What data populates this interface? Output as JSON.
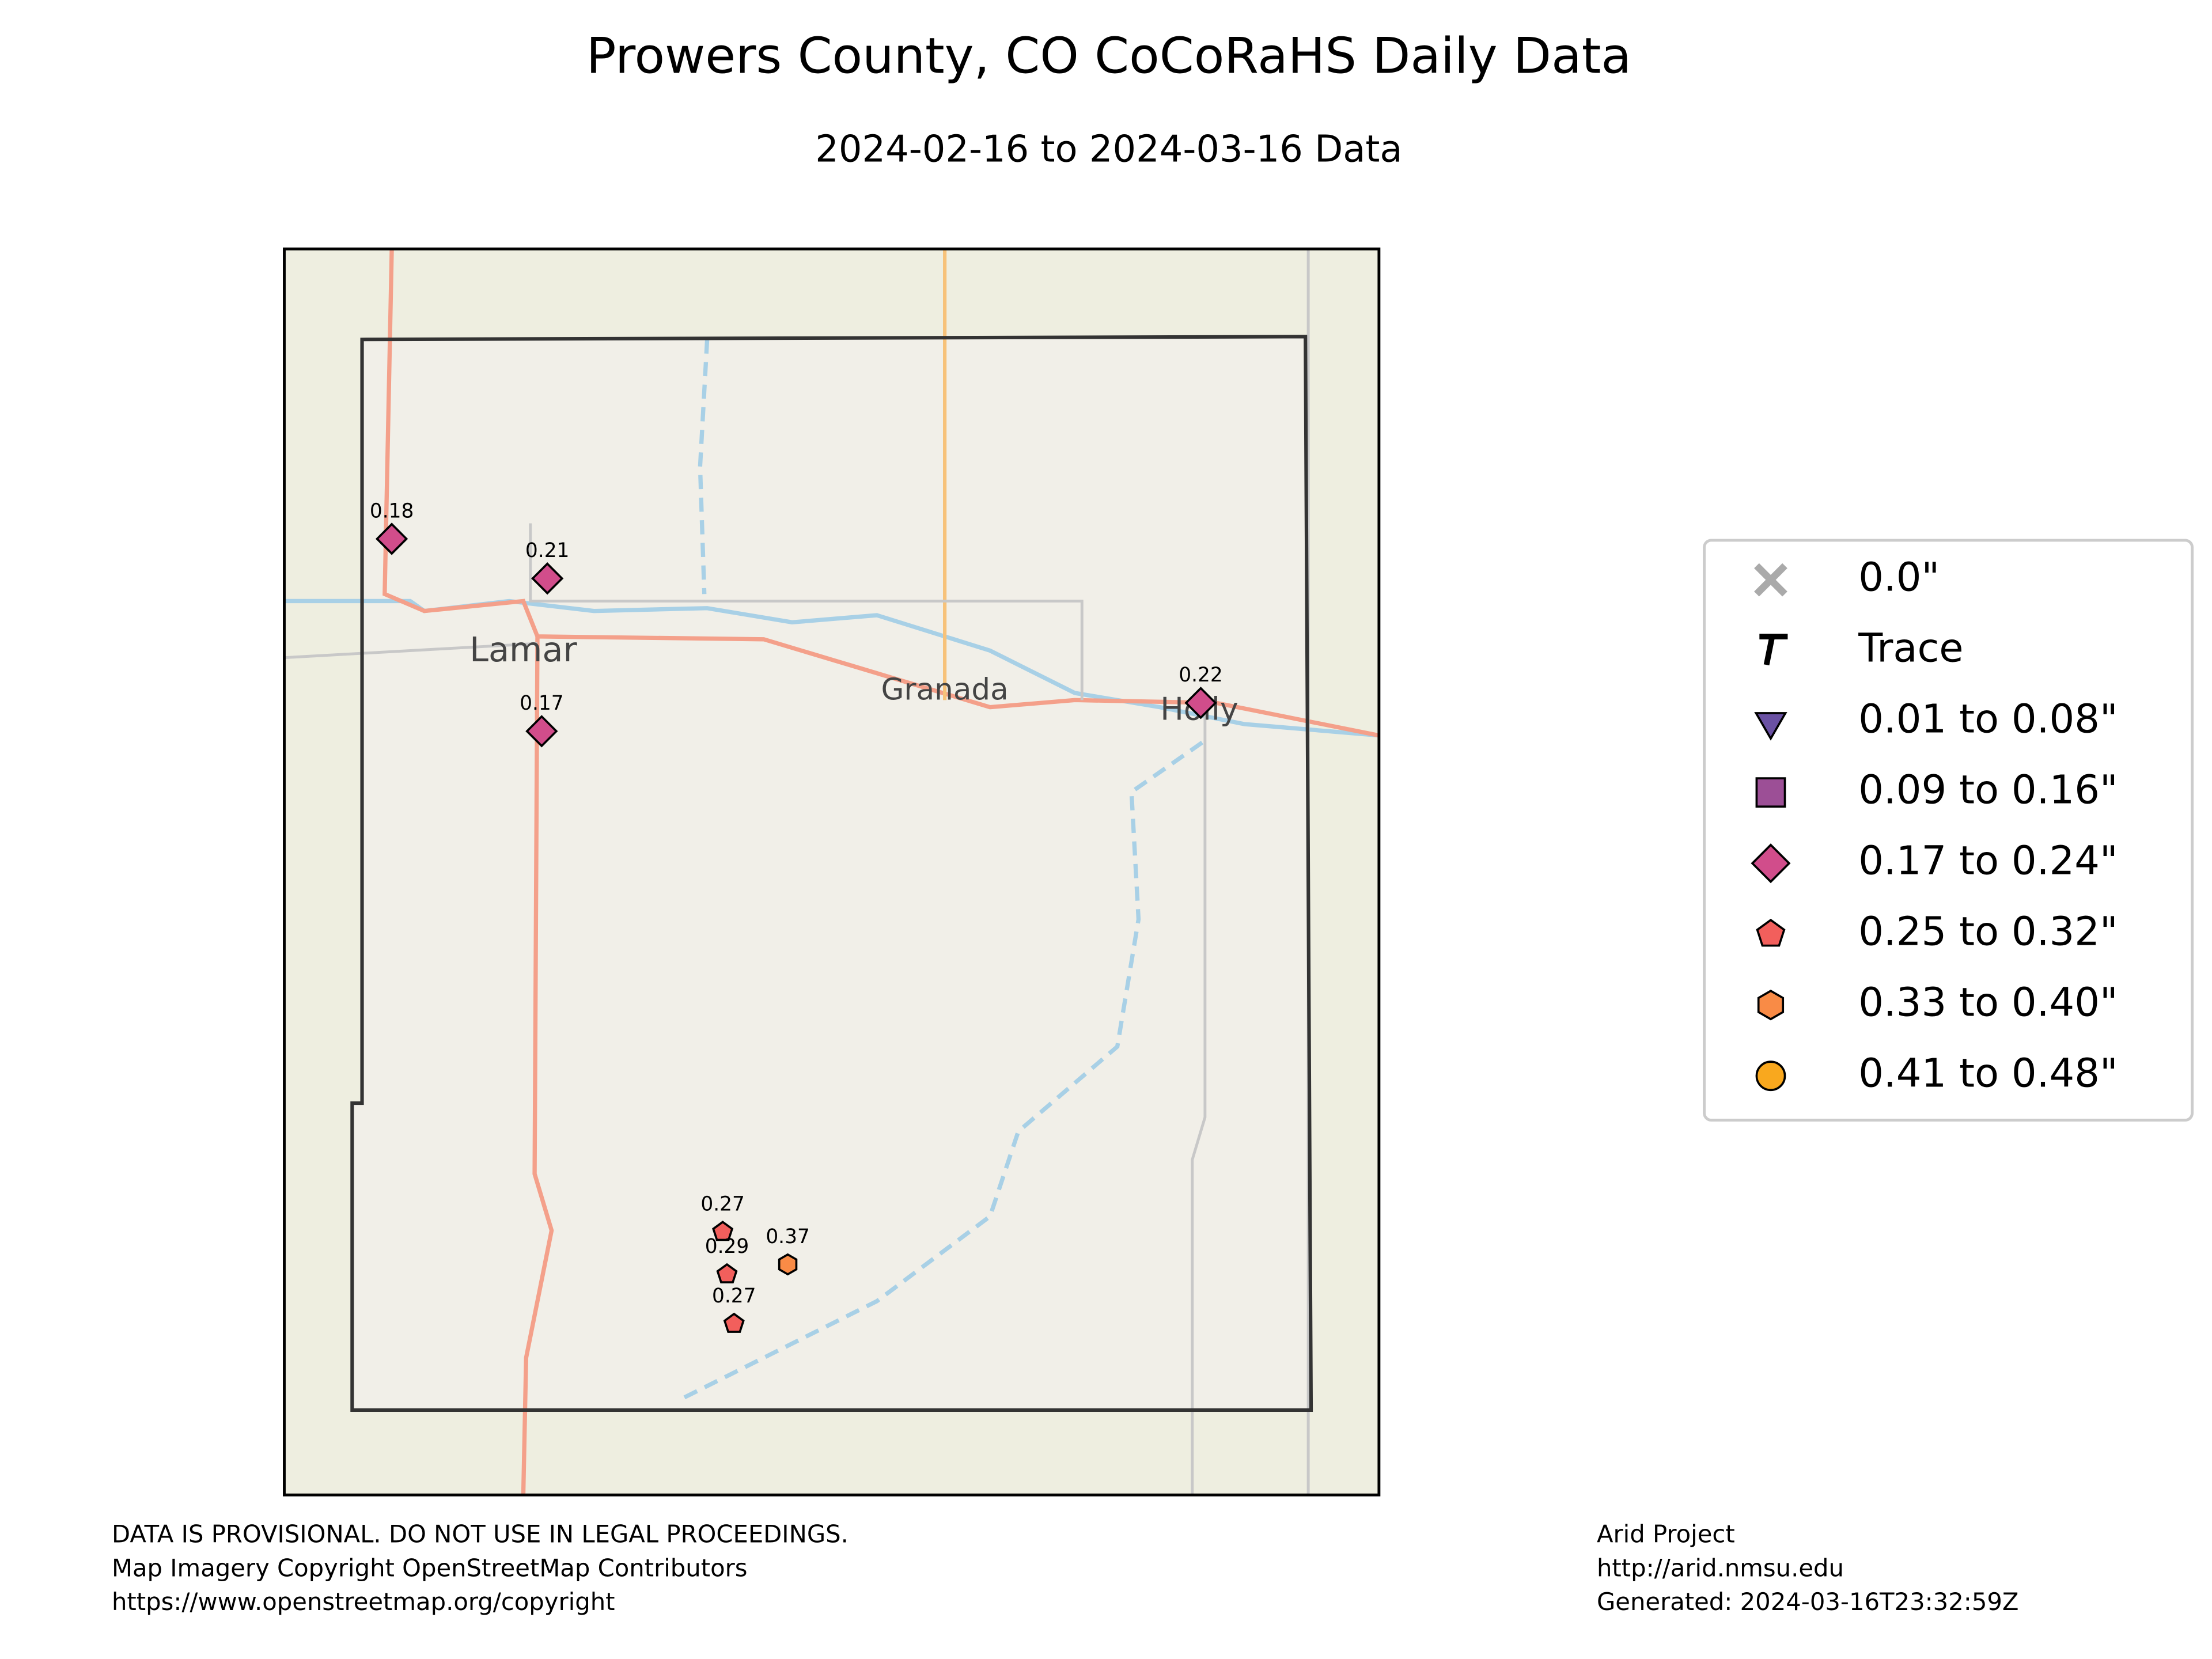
{
  "title": "Prowers County, CO CoCoRaHS Daily Data",
  "subtitle": "2024-02-16 to 2024-03-16 Data",
  "places": [
    "Lamar",
    "Granada",
    "Holly"
  ],
  "stations": [
    {
      "value": 0.18
    },
    {
      "value": 0.21
    },
    {
      "value": 0.17
    },
    {
      "value": 0.22
    },
    {
      "value": 0.27
    },
    {
      "value": 0.29
    },
    {
      "value": 0.37
    },
    {
      "value": 0.27
    }
  ],
  "legend": {
    "corner": "right",
    "items": [
      {
        "label": "0.0\"",
        "shape": "x",
        "color": "#aaaaaa",
        "low": 0,
        "high": 0
      },
      {
        "label": "Trace",
        "shape": "t",
        "color": "#000000"
      },
      {
        "label": "0.01 to 0.08\"",
        "shape": "triangle",
        "color": "#6a51a3",
        "low": 0.01,
        "high": 0.08
      },
      {
        "label": "0.09 to 0.16\"",
        "shape": "square",
        "color": "#9c4f96",
        "low": 0.09,
        "high": 0.16
      },
      {
        "label": "0.17 to 0.24\"",
        "shape": "diamond",
        "color": "#d14d8b",
        "low": 0.17,
        "high": 0.24
      },
      {
        "label": "0.25 to 0.32\"",
        "shape": "pentagon",
        "color": "#f25f5c",
        "low": 0.25,
        "high": 0.32
      },
      {
        "label": "0.33 to 0.40\"",
        "shape": "hexagon",
        "color": "#f98b46",
        "low": 0.33,
        "high": 0.4
      },
      {
        "label": "0.41 to 0.48\"",
        "shape": "circle",
        "color": "#f9a81e",
        "low": 0.41,
        "high": 0.48
      }
    ]
  },
  "footer_left": [
    "DATA IS PROVISIONAL. DO NOT USE IN LEGAL PROCEEDINGS.",
    "Map Imagery Copyright OpenStreetMap Contributors",
    "https://www.openstreetmap.org/copyright"
  ],
  "footer_right": [
    "Arid Project",
    "http://arid.nmsu.edu",
    "Generated: 2024-03-16T23:32:59Z"
  ]
}
